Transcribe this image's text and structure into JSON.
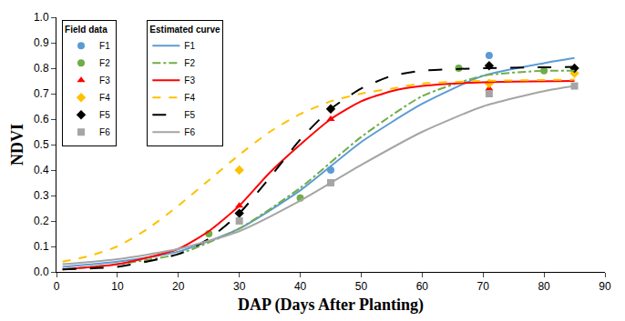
{
  "chart_data": {
    "type": "line",
    "x_label": "DAP (Days After Planting)",
    "y_label": "NDVI",
    "xlim": [
      0,
      90
    ],
    "xticks": [
      0,
      10,
      20,
      30,
      40,
      50,
      60,
      70,
      80,
      90
    ],
    "ylim": [
      0,
      1
    ],
    "yticks": [
      {
        "value": 0,
        "label": "0.0"
      },
      0.1,
      0.2,
      0.3,
      0.4,
      0.5,
      0.6,
      0.7,
      0.8,
      0.9,
      {
        "value": 1,
        "label": "1.0"
      }
    ],
    "grid": false,
    "legend": "upper left",
    "series_groups": [
      {
        "title": "Field data",
        "series": [
          {
            "name": "F1",
            "type": "scatter",
            "marker": "circle",
            "color": "#5B9BD5",
            "x": [
              45,
              71
            ],
            "values": [
              0.4,
              0.85
            ]
          },
          {
            "name": "F2",
            "type": "scatter",
            "marker": "circle",
            "color": "#70AD47",
            "x": [
              25,
              40,
              66,
              80
            ],
            "values": [
              0.15,
              0.29,
              0.8,
              0.79
            ]
          },
          {
            "name": "F3",
            "type": "scatter",
            "marker": "triangle",
            "color": "#FF0000",
            "x": [
              30,
              45,
              71
            ],
            "values": [
              0.26,
              0.6,
              0.72
            ]
          },
          {
            "name": "F4",
            "type": "scatter",
            "marker": "diamond",
            "color": "#FFC000",
            "x": [
              30,
              45,
              71,
              85
            ],
            "values": [
              0.4,
              0.64,
              0.74,
              0.78
            ]
          },
          {
            "name": "F5",
            "type": "scatter",
            "marker": "diamond",
            "color": "#000000",
            "x": [
              30,
              45,
              71,
              85
            ],
            "values": [
              0.23,
              0.64,
              0.81,
              0.8
            ]
          },
          {
            "name": "F6",
            "type": "scatter",
            "marker": "square",
            "color": "#A5A5A5",
            "x": [
              30,
              45,
              71,
              85
            ],
            "values": [
              0.2,
              0.35,
              0.7,
              0.73
            ]
          }
        ]
      },
      {
        "title": "Estimated curve",
        "series": [
          {
            "name": "F1",
            "type": "line",
            "line_style": "solid",
            "color": "#5B9BD5",
            "x": [
              1,
              10,
              20,
              30,
              40,
              50,
              60,
              70,
              80,
              85
            ],
            "values": [
              0.02,
              0.04,
              0.08,
              0.17,
              0.32,
              0.51,
              0.66,
              0.77,
              0.82,
              0.84
            ]
          },
          {
            "name": "F2",
            "type": "line",
            "line_style": "dashdot",
            "color": "#70AD47",
            "x": [
              1,
              10,
              20,
              30,
              40,
              50,
              60,
              70,
              80,
              85
            ],
            "values": [
              0.01,
              0.03,
              0.07,
              0.17,
              0.33,
              0.53,
              0.69,
              0.77,
              0.79,
              0.79
            ]
          },
          {
            "name": "F3",
            "type": "line",
            "line_style": "solid",
            "color": "#FF0000",
            "x": [
              1,
              10,
              20,
              25,
              30,
              35,
              40,
              45,
              50,
              55,
              60,
              70,
              85
            ],
            "values": [
              0.01,
              0.03,
              0.09,
              0.16,
              0.26,
              0.39,
              0.5,
              0.6,
              0.67,
              0.71,
              0.73,
              0.745,
              0.75
            ]
          },
          {
            "name": "F4",
            "type": "line",
            "line_style": "dash",
            "color": "#FFC000",
            "x": [
              1,
              5,
              10,
              15,
              20,
              25,
              30,
              35,
              40,
              45,
              50,
              55,
              60,
              70,
              85
            ],
            "values": [
              0.04,
              0.06,
              0.1,
              0.17,
              0.26,
              0.36,
              0.46,
              0.55,
              0.62,
              0.67,
              0.7,
              0.72,
              0.74,
              0.75,
              0.755
            ]
          },
          {
            "name": "F5",
            "type": "line",
            "line_style": "longdash",
            "color": "#000000",
            "x": [
              1,
              10,
              20,
              25,
              30,
              35,
              40,
              45,
              50,
              55,
              60,
              70,
              85
            ],
            "values": [
              0.01,
              0.02,
              0.07,
              0.13,
              0.23,
              0.37,
              0.52,
              0.64,
              0.72,
              0.77,
              0.79,
              0.8,
              0.805
            ]
          },
          {
            "name": "F6",
            "type": "line",
            "line_style": "solid",
            "color": "#A5A5A5",
            "x": [
              1,
              10,
              20,
              30,
              40,
              50,
              60,
              70,
              80,
              85
            ],
            "values": [
              0.03,
              0.05,
              0.09,
              0.16,
              0.28,
              0.42,
              0.55,
              0.65,
              0.71,
              0.73
            ]
          }
        ]
      }
    ]
  }
}
